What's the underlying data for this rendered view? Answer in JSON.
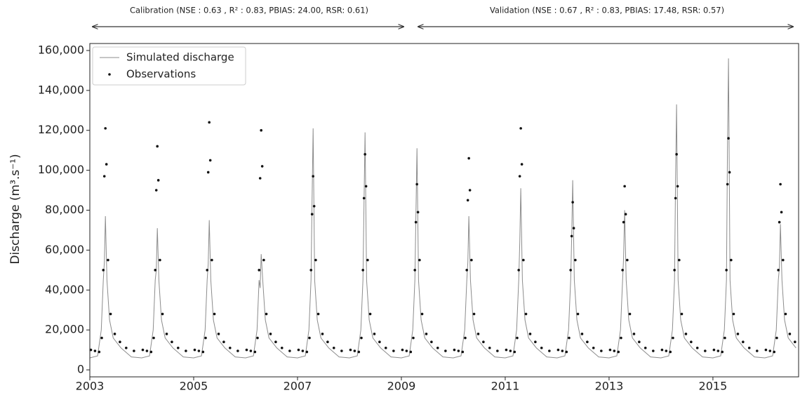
{
  "chart_data": {
    "type": "line",
    "annotations": [
      "Calibration (NSE : 0.63 , R² : 0.83, PBIAS: 24.00, RSR: 0.61)",
      "Validation (NSE : 0.67 , R² : 0.83, PBIAS: 17.48, RSR: 0.57)"
    ],
    "y_label": "Discharge (m³.s⁻¹)",
    "xlim": [
      2003,
      2016.65
    ],
    "xticks": [
      2003,
      2005,
      2007,
      2009,
      2011,
      2013,
      2015
    ],
    "ylim": [
      -3500,
      163500
    ],
    "yticks": [
      0,
      {
        "value": 20000,
        "label": "20,000"
      },
      {
        "value": 40000,
        "label": "40,000"
      },
      {
        "value": 60000,
        "label": "60,000"
      },
      {
        "value": 80000,
        "label": "80,000"
      },
      {
        "value": 100000,
        "label": "100,000"
      },
      {
        "value": 120000,
        "label": "120,000"
      },
      {
        "value": 140000,
        "label": "140,000"
      },
      {
        "value": 160000,
        "label": "160,000"
      }
    ],
    "legend": "upper left",
    "series": [
      {
        "name": "Simulated discharge",
        "color": "#8c8c8c",
        "style": "line",
        "x": [
          2003.0,
          2003.15,
          2003.22,
          2003.26,
          2003.28,
          2003.3,
          2003.33,
          2003.38,
          2003.45,
          2003.6,
          2003.8,
          2004.0,
          2004.15,
          2004.22,
          2004.26,
          2004.28,
          2004.3,
          2004.33,
          2004.38,
          2004.45,
          2004.6,
          2004.8,
          2005.0,
          2005.15,
          2005.22,
          2005.26,
          2005.28,
          2005.3,
          2005.33,
          2005.38,
          2005.45,
          2005.6,
          2005.8,
          2006.0,
          2006.15,
          2006.22,
          2006.26,
          2006.28,
          2006.3,
          2006.33,
          2006.38,
          2006.45,
          2006.6,
          2006.8,
          2007.0,
          2007.15,
          2007.22,
          2007.26,
          2007.28,
          2007.3,
          2007.33,
          2007.38,
          2007.45,
          2007.6,
          2007.8,
          2008.0,
          2008.15,
          2008.22,
          2008.26,
          2008.28,
          2008.3,
          2008.33,
          2008.38,
          2008.45,
          2008.6,
          2008.8,
          2009.0,
          2009.15,
          2009.22,
          2009.26,
          2009.28,
          2009.3,
          2009.33,
          2009.38,
          2009.45,
          2009.6,
          2009.8,
          2010.0,
          2010.15,
          2010.22,
          2010.26,
          2010.28,
          2010.3,
          2010.33,
          2010.38,
          2010.45,
          2010.6,
          2010.8,
          2011.0,
          2011.15,
          2011.22,
          2011.26,
          2011.28,
          2011.3,
          2011.33,
          2011.38,
          2011.45,
          2011.6,
          2011.8,
          2012.0,
          2012.15,
          2012.22,
          2012.26,
          2012.28,
          2012.3,
          2012.33,
          2012.38,
          2012.45,
          2012.6,
          2012.8,
          2013.0,
          2013.15,
          2013.22,
          2013.26,
          2013.28,
          2013.3,
          2013.33,
          2013.38,
          2013.45,
          2013.6,
          2013.8,
          2014.0,
          2014.15,
          2014.22,
          2014.26,
          2014.28,
          2014.3,
          2014.33,
          2014.38,
          2014.45,
          2014.6,
          2014.8,
          2015.0,
          2015.15,
          2015.22,
          2015.26,
          2015.28,
          2015.3,
          2015.33,
          2015.38,
          2015.45,
          2015.6,
          2015.8,
          2016.0,
          2016.15,
          2016.22,
          2016.26,
          2016.28,
          2016.3,
          2016.33,
          2016.38,
          2016.45,
          2016.6
        ],
        "values": [
          6000,
          7000,
          20000,
          45000,
          54000,
          77000,
          45000,
          25000,
          16000,
          11000,
          6500,
          6000,
          7000,
          20000,
          45000,
          50000,
          71000,
          45000,
          25000,
          16000,
          11000,
          6500,
          6000,
          7000,
          20000,
          45000,
          53000,
          75000,
          45000,
          25000,
          16000,
          11000,
          6500,
          6000,
          7000,
          20000,
          45000,
          41000,
          58000,
          45000,
          25000,
          16000,
          11000,
          6500,
          6000,
          7000,
          20000,
          45000,
          85000,
          121000,
          45000,
          25000,
          16000,
          11000,
          6500,
          6000,
          7000,
          20000,
          45000,
          83000,
          119000,
          45000,
          25000,
          16000,
          11000,
          6500,
          6000,
          7000,
          20000,
          45000,
          78000,
          111000,
          45000,
          25000,
          16000,
          11000,
          6500,
          6000,
          7000,
          20000,
          45000,
          54000,
          77000,
          45000,
          25000,
          16000,
          11000,
          6500,
          6000,
          7000,
          20000,
          45000,
          64000,
          91000,
          45000,
          25000,
          16000,
          11000,
          6500,
          6000,
          7000,
          20000,
          45000,
          67000,
          95000,
          45000,
          25000,
          16000,
          11000,
          6500,
          6000,
          7000,
          20000,
          45000,
          56000,
          80000,
          45000,
          25000,
          16000,
          11000,
          6500,
          6000,
          7000,
          20000,
          45000,
          93000,
          133000,
          45000,
          25000,
          16000,
          11000,
          6500,
          6000,
          7000,
          20000,
          45000,
          109000,
          156000,
          45000,
          25000,
          16000,
          11000,
          6500,
          6000,
          7000,
          20000,
          45000,
          51000,
          73000,
          45000,
          25000,
          16000,
          11000
        ]
      },
      {
        "name": "Observations",
        "color": "#111111",
        "style": "dots",
        "x": [
          2003.02,
          2003.1,
          2003.18,
          2003.23,
          2003.26,
          2003.28,
          2003.3,
          2003.32,
          2003.35,
          2003.4,
          2003.48,
          2003.58,
          2003.7,
          2003.85,
          2004.02,
          2004.1,
          2004.18,
          2004.23,
          2004.26,
          2004.28,
          2004.3,
          2004.32,
          2004.35,
          2004.4,
          2004.48,
          2004.58,
          2004.7,
          2004.85,
          2005.02,
          2005.1,
          2005.18,
          2005.23,
          2005.26,
          2005.28,
          2005.3,
          2005.32,
          2005.35,
          2005.4,
          2005.48,
          2005.58,
          2005.7,
          2005.85,
          2006.02,
          2006.1,
          2006.18,
          2006.23,
          2006.26,
          2006.28,
          2006.3,
          2006.32,
          2006.35,
          2006.4,
          2006.48,
          2006.58,
          2006.7,
          2006.85,
          2007.02,
          2007.1,
          2007.18,
          2007.23,
          2007.26,
          2007.28,
          2007.3,
          2007.32,
          2007.35,
          2007.4,
          2007.48,
          2007.58,
          2007.7,
          2007.85,
          2008.02,
          2008.1,
          2008.18,
          2008.23,
          2008.26,
          2008.28,
          2008.3,
          2008.32,
          2008.35,
          2008.4,
          2008.48,
          2008.58,
          2008.7,
          2008.85,
          2009.02,
          2009.1,
          2009.18,
          2009.23,
          2009.26,
          2009.28,
          2009.3,
          2009.32,
          2009.35,
          2009.4,
          2009.48,
          2009.58,
          2009.7,
          2009.85,
          2010.02,
          2010.1,
          2010.18,
          2010.23,
          2010.26,
          2010.28,
          2010.3,
          2010.32,
          2010.35,
          2010.4,
          2010.48,
          2010.58,
          2010.7,
          2010.85,
          2011.02,
          2011.1,
          2011.18,
          2011.23,
          2011.26,
          2011.28,
          2011.3,
          2011.32,
          2011.35,
          2011.4,
          2011.48,
          2011.58,
          2011.7,
          2011.85,
          2012.02,
          2012.1,
          2012.18,
          2012.23,
          2012.26,
          2012.28,
          2012.3,
          2012.32,
          2012.35,
          2012.4,
          2012.48,
          2012.58,
          2012.7,
          2012.85,
          2013.02,
          2013.1,
          2013.18,
          2013.23,
          2013.26,
          2013.28,
          2013.3,
          2013.32,
          2013.35,
          2013.4,
          2013.48,
          2013.58,
          2013.7,
          2013.85,
          2014.02,
          2014.1,
          2014.18,
          2014.23,
          2014.26,
          2014.28,
          2014.3,
          2014.32,
          2014.35,
          2014.4,
          2014.48,
          2014.58,
          2014.7,
          2014.85,
          2015.02,
          2015.1,
          2015.18,
          2015.23,
          2015.26,
          2015.28,
          2015.3,
          2015.32,
          2015.35,
          2015.4,
          2015.48,
          2015.58,
          2015.7,
          2015.85,
          2016.02,
          2016.1,
          2016.18,
          2016.23,
          2016.26,
          2016.28,
          2016.3,
          2016.32,
          2016.35,
          2016.4,
          2016.48,
          2016.58
        ],
        "values": [
          10000,
          9500,
          9000,
          16000,
          50000,
          97000,
          121000,
          103000,
          55000,
          28000,
          18000,
          14000,
          11000,
          9500,
          10000,
          9500,
          9000,
          16000,
          50000,
          90000,
          112000,
          95000,
          55000,
          28000,
          18000,
          14000,
          11000,
          9500,
          10000,
          9500,
          9000,
          16000,
          50000,
          99000,
          124000,
          105000,
          55000,
          28000,
          18000,
          14000,
          11000,
          9500,
          10000,
          9500,
          9000,
          16000,
          50000,
          96000,
          120000,
          102000,
          55000,
          28000,
          18000,
          14000,
          11000,
          9500,
          10000,
          9500,
          9000,
          16000,
          50000,
          78000,
          97000,
          82000,
          55000,
          28000,
          18000,
          14000,
          11000,
          9500,
          10000,
          9500,
          9000,
          16000,
          50000,
          86000,
          108000,
          92000,
          55000,
          28000,
          18000,
          14000,
          11000,
          9500,
          10000,
          9500,
          9000,
          16000,
          50000,
          74000,
          93000,
          79000,
          55000,
          28000,
          18000,
          14000,
          11000,
          9500,
          10000,
          9500,
          9000,
          16000,
          50000,
          85000,
          106000,
          90000,
          55000,
          28000,
          18000,
          14000,
          11000,
          9500,
          10000,
          9500,
          9000,
          16000,
          50000,
          97000,
          121000,
          103000,
          55000,
          28000,
          18000,
          14000,
          11000,
          9500,
          10000,
          9500,
          9000,
          16000,
          50000,
          67000,
          84000,
          71000,
          55000,
          28000,
          18000,
          14000,
          11000,
          9500,
          10000,
          9500,
          9000,
          16000,
          50000,
          74000,
          92000,
          78000,
          55000,
          28000,
          18000,
          14000,
          11000,
          9500,
          10000,
          9500,
          9000,
          16000,
          50000,
          86000,
          108000,
          92000,
          55000,
          28000,
          18000,
          14000,
          11000,
          9500,
          10000,
          9500,
          9000,
          16000,
          50000,
          93000,
          116000,
          99000,
          55000,
          28000,
          18000,
          14000,
          11000,
          9500,
          10000,
          9500,
          9000,
          16000,
          50000,
          74000,
          93000,
          79000,
          55000,
          28000,
          18000,
          14000
        ]
      }
    ]
  }
}
